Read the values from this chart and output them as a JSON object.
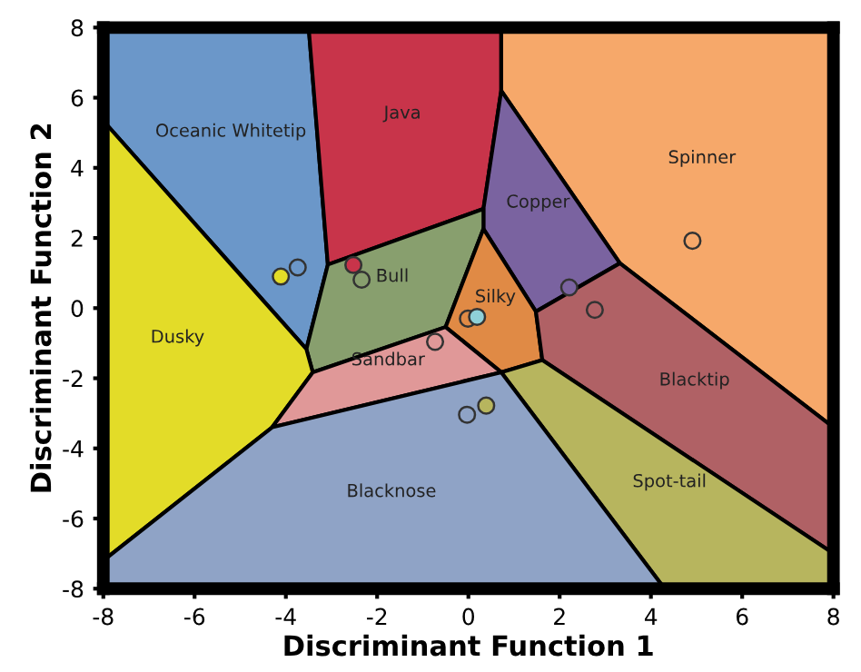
{
  "chart_data": {
    "type": "scatter",
    "xlabel": "Discriminant Function 1",
    "ylabel": "Discriminant Function 2",
    "xlim": [
      -8,
      8
    ],
    "ylim": [
      -8,
      8
    ],
    "xticks": [
      -8,
      -6,
      -4,
      -2,
      0,
      2,
      4,
      6,
      8
    ],
    "yticks": [
      -8,
      -6,
      -4,
      -2,
      0,
      2,
      4,
      6,
      8
    ],
    "grid": false,
    "legend": false,
    "series": [
      {
        "type": "area",
        "name": "Oceanic Whitetip",
        "color": "#6b97c9",
        "x": [
          -8,
          -3.5,
          -3.08,
          -3.55,
          -8
        ],
        "values": [
          8,
          8,
          1.24,
          -1.17,
          5.34
        ]
      },
      {
        "type": "area",
        "name": "Java",
        "color": "#c8344a",
        "x": [
          -3.5,
          0.72,
          0.72,
          0.33,
          -3.08
        ],
        "values": [
          8,
          8,
          6.2,
          2.83,
          1.24
        ]
      },
      {
        "type": "area",
        "name": "Spinner",
        "color": "#f6a86a",
        "x": [
          0.72,
          8,
          8,
          3.32,
          0.72
        ],
        "values": [
          8,
          8,
          -3.4,
          1.28,
          6.2
        ]
      },
      {
        "type": "area",
        "name": "Copper",
        "color": "#7a63a0",
        "x": [
          0.72,
          3.32,
          1.48,
          0.33,
          0.33
        ],
        "values": [
          6.2,
          1.28,
          -0.1,
          2.26,
          2.83
        ]
      },
      {
        "type": "area",
        "name": "Bull",
        "color": "#889f6e",
        "x": [
          -3.08,
          0.33,
          0.33,
          -0.5,
          -3.41,
          -3.55
        ],
        "values": [
          1.24,
          2.83,
          2.26,
          -0.54,
          -1.83,
          -1.17
        ]
      },
      {
        "type": "area",
        "name": "Silky",
        "color": "#e08a45",
        "x": [
          0.33,
          1.48,
          1.62,
          0.72,
          -0.5
        ],
        "values": [
          2.26,
          -0.1,
          -1.48,
          -1.83,
          -0.54
        ]
      },
      {
        "type": "area",
        "name": "Dusky",
        "color": "#e3dc28",
        "x": [
          -8,
          -3.55,
          -3.41,
          -4.3,
          -8
        ],
        "values": [
          5.34,
          -1.17,
          -1.83,
          -3.4,
          -7.2
        ]
      },
      {
        "type": "area",
        "name": "Sandbar",
        "color": "#e09898",
        "x": [
          -3.41,
          -0.5,
          0.72,
          -4.3
        ],
        "values": [
          -1.83,
          -0.54,
          -1.83,
          -3.4
        ]
      },
      {
        "type": "area",
        "name": "Blacktip",
        "color": "#b06165",
        "x": [
          3.32,
          8,
          8,
          1.62,
          1.48
        ],
        "values": [
          1.28,
          -3.4,
          -7.0,
          -1.48,
          -0.1
        ]
      },
      {
        "type": "area",
        "name": "Spot-tail",
        "color": "#b7b55e",
        "x": [
          1.62,
          8,
          8,
          4.3,
          0.72
        ],
        "values": [
          -1.48,
          -7.0,
          -8,
          -8,
          -1.83
        ]
      },
      {
        "type": "area",
        "name": "Blacknose",
        "color": "#8fa3c6",
        "x": [
          -8,
          -4.3,
          0.72,
          4.3,
          -8
        ],
        "values": [
          -7.2,
          -3.4,
          -1.83,
          -8,
          -8
        ]
      },
      {
        "marker": "circle",
        "x": [
          -4.11,
          -3.74,
          -2.52,
          -2.34,
          4.91,
          2.21,
          2.77,
          -0.01,
          0.19,
          -0.73,
          -0.03,
          0.39
        ],
        "values": [
          0.9,
          1.16,
          1.23,
          0.81,
          1.92,
          0.59,
          -0.05,
          -0.3,
          -0.25,
          -0.96,
          -3.04,
          -2.78
        ],
        "colors": [
          "#e3dc28",
          "#6b97c9",
          "#c8344a",
          "#889f6e",
          "#f6a86a",
          "#7a63a0",
          "#b06165",
          "#e08a45",
          "#8fd0d8",
          "#e09898",
          "#8fa3c6",
          "#b7b55e"
        ]
      }
    ]
  }
}
